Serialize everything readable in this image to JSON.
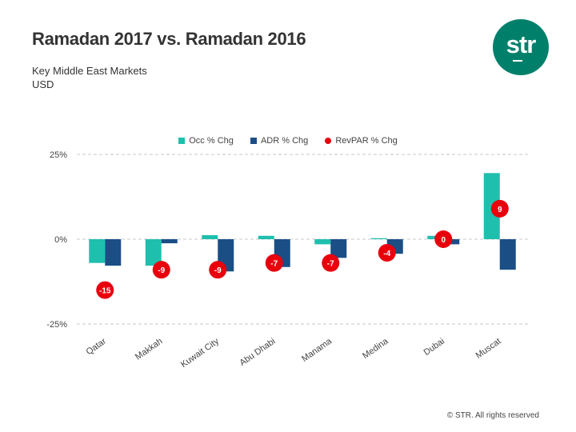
{
  "header": {
    "title": "Ramadan 2017 vs. Ramadan 2016",
    "subtitle_line1": "Key Middle East Markets",
    "subtitle_line2": "USD"
  },
  "logo": {
    "text": "str"
  },
  "footer": {
    "copyright": "© STR. All rights reserved"
  },
  "colors": {
    "occ": "#1fbfae",
    "adr": "#1a4e85",
    "revpar": "#e8000d",
    "grid": "#c8c8c8",
    "logo": "#00806b"
  },
  "chart_data": {
    "type": "bar",
    "title": "Ramadan 2017 vs. Ramadan 2016",
    "categories": [
      "Qatar",
      "Makkah",
      "Kuwait City",
      "Abu Dhabi",
      "Manama",
      "Medina",
      "Dubai",
      "Muscat"
    ],
    "series": [
      {
        "name": "Occ % Chg",
        "kind": "bar",
        "values": [
          -7.0,
          -7.8,
          1.2,
          1.0,
          -1.5,
          0.3,
          1.0,
          19.5
        ]
      },
      {
        "name": "ADR % Chg",
        "kind": "bar",
        "values": [
          -7.8,
          -1.2,
          -9.5,
          -8.2,
          -5.5,
          -4.3,
          -1.5,
          -9.0
        ]
      },
      {
        "name": "RevPAR % Chg",
        "kind": "marker",
        "values": [
          -15,
          -9,
          -9,
          -7,
          -7,
          -4,
          0,
          9
        ],
        "labels": [
          "-15",
          "-9",
          "-9",
          "-7",
          "-7",
          "-4",
          "0",
          "9"
        ]
      }
    ],
    "y_ticks": [
      25,
      0,
      -25
    ],
    "y_tick_labels": [
      "25%",
      "0%",
      "-25%"
    ],
    "ylim": [
      -25,
      25
    ],
    "xlabel": "",
    "ylabel": "",
    "grid": true,
    "legend_position": "top-center"
  }
}
